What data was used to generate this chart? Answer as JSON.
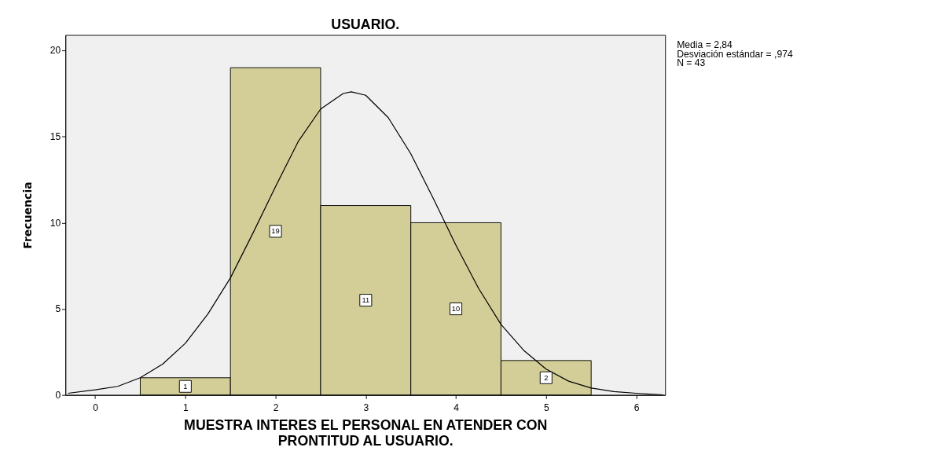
{
  "chart_data": {
    "type": "histogram",
    "title": "USUARIO.",
    "xlabel": "MUESTRA INTERES EL PERSONAL EN ATENDER CON PRONTITUD AL USUARIO.",
    "ylabel": "Frecuencia",
    "bins": [
      0.5,
      1.5,
      2.5,
      3.5,
      4.5,
      5.5
    ],
    "values": [
      1,
      19,
      11,
      10,
      2
    ],
    "color": "#d3ce97",
    "value_labels": [
      "1",
      "19",
      "11",
      "10",
      "2"
    ],
    "series": [
      {
        "type": "line",
        "color": "#000000",
        "x": [
          -0.3,
          0,
          0.25,
          0.5,
          0.75,
          1.0,
          1.25,
          1.5,
          1.75,
          2.0,
          2.25,
          2.5,
          2.75,
          2.84,
          3.0,
          3.25,
          3.5,
          3.75,
          4.0,
          4.25,
          4.5,
          4.75,
          5.0,
          5.25,
          5.5,
          5.75,
          6.0,
          6.3
        ],
        "values": [
          0.1,
          0.3,
          0.5,
          1.0,
          1.8,
          3.0,
          4.7,
          6.8,
          9.4,
          12.1,
          14.7,
          16.6,
          17.5,
          17.6,
          17.4,
          16.1,
          14.0,
          11.4,
          8.7,
          6.2,
          4.1,
          2.6,
          1.5,
          0.8,
          0.4,
          0.2,
          0.1,
          0.0
        ]
      }
    ],
    "xlim": [
      -0.33,
      6.32
    ],
    "xticks": [
      0,
      1,
      2,
      3,
      4,
      5,
      6
    ],
    "ylim": [
      0,
      20.9
    ],
    "yticks": [
      0,
      5,
      10,
      15,
      20
    ],
    "grid": false,
    "annotations": [
      "Media = 2,84",
      "Desviación estándar = ,974",
      "N = 43"
    ]
  }
}
